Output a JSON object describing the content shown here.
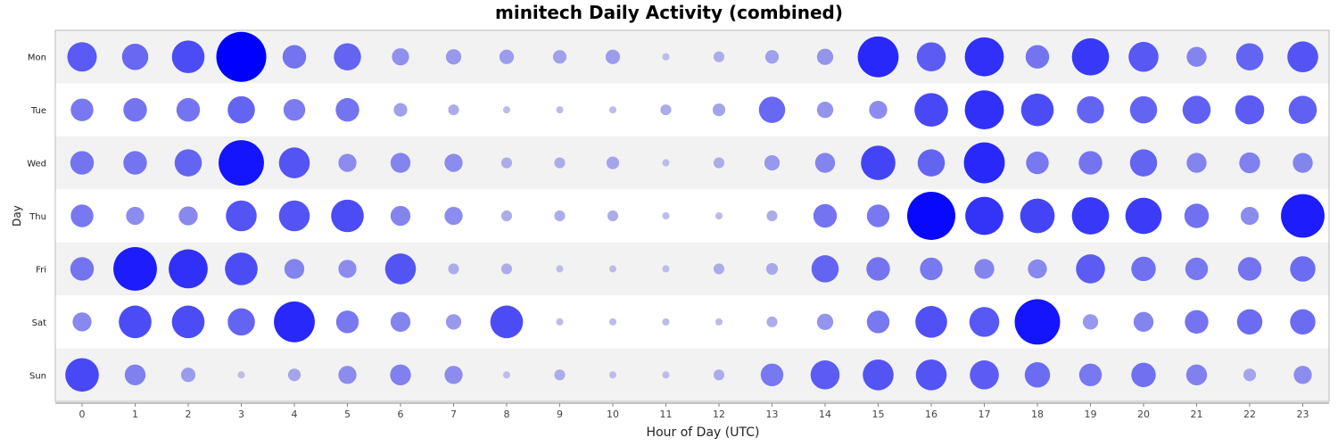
{
  "chart_data": {
    "type": "scatter",
    "subtype": "punchcard",
    "title": "minitech Daily Activity (combined)",
    "xlabel": "Hour of Day (UTC)",
    "ylabel": "Day",
    "x_categories": [
      "0",
      "1",
      "2",
      "3",
      "4",
      "5",
      "6",
      "7",
      "8",
      "9",
      "10",
      "11",
      "12",
      "13",
      "14",
      "15",
      "16",
      "17",
      "18",
      "19",
      "20",
      "21",
      "22",
      "23"
    ],
    "y_categories": [
      "Mon",
      "Tue",
      "Wed",
      "Thu",
      "Fri",
      "Sat",
      "Sun"
    ],
    "grid": false,
    "row_banding": true,
    "color_scale": [
      "#c8c8e6",
      "#0000ff"
    ],
    "scale": "relative activity, 0-1 (estimated from bubble size)",
    "values": [
      [
        0.55,
        0.48,
        0.62,
        1.0,
        0.42,
        0.5,
        0.28,
        0.24,
        0.22,
        0.2,
        0.22,
        0.06,
        0.14,
        0.2,
        0.26,
        0.8,
        0.54,
        0.76,
        0.42,
        0.72,
        0.56,
        0.34,
        0.5,
        0.58
      ],
      [
        0.4,
        0.42,
        0.42,
        0.5,
        0.38,
        0.42,
        0.2,
        0.14,
        0.06,
        0.06,
        0.06,
        0.14,
        0.18,
        0.48,
        0.26,
        0.3,
        0.64,
        0.76,
        0.62,
        0.5,
        0.5,
        0.52,
        0.54,
        0.52
      ],
      [
        0.42,
        0.42,
        0.5,
        0.9,
        0.58,
        0.3,
        0.34,
        0.3,
        0.14,
        0.14,
        0.18,
        0.06,
        0.14,
        0.24,
        0.34,
        0.66,
        0.5,
        0.8,
        0.4,
        0.42,
        0.5,
        0.34,
        0.36,
        0.34
      ],
      [
        0.4,
        0.3,
        0.32,
        0.58,
        0.58,
        0.62,
        0.34,
        0.3,
        0.14,
        0.14,
        0.14,
        0.06,
        0.06,
        0.14,
        0.42,
        0.4,
        0.96,
        0.74,
        0.66,
        0.72,
        0.7,
        0.44,
        0.3,
        0.86
      ],
      [
        0.42,
        0.86,
        0.76,
        0.62,
        0.34,
        0.3,
        0.58,
        0.14,
        0.14,
        0.06,
        0.06,
        0.06,
        0.14,
        0.16,
        0.5,
        0.42,
        0.4,
        0.34,
        0.32,
        0.54,
        0.44,
        0.4,
        0.42,
        0.46
      ],
      [
        0.32,
        0.62,
        0.62,
        0.5,
        0.8,
        0.4,
        0.34,
        0.24,
        0.62,
        0.06,
        0.06,
        0.06,
        0.06,
        0.14,
        0.26,
        0.4,
        0.6,
        0.56,
        0.9,
        0.24,
        0.34,
        0.42,
        0.46,
        0.46
      ],
      [
        0.64,
        0.36,
        0.22,
        0.06,
        0.18,
        0.3,
        0.36,
        0.3,
        0.06,
        0.14,
        0.06,
        0.06,
        0.14,
        0.4,
        0.54,
        0.58,
        0.58,
        0.54,
        0.46,
        0.4,
        0.44,
        0.36,
        0.18,
        0.3
      ]
    ]
  }
}
